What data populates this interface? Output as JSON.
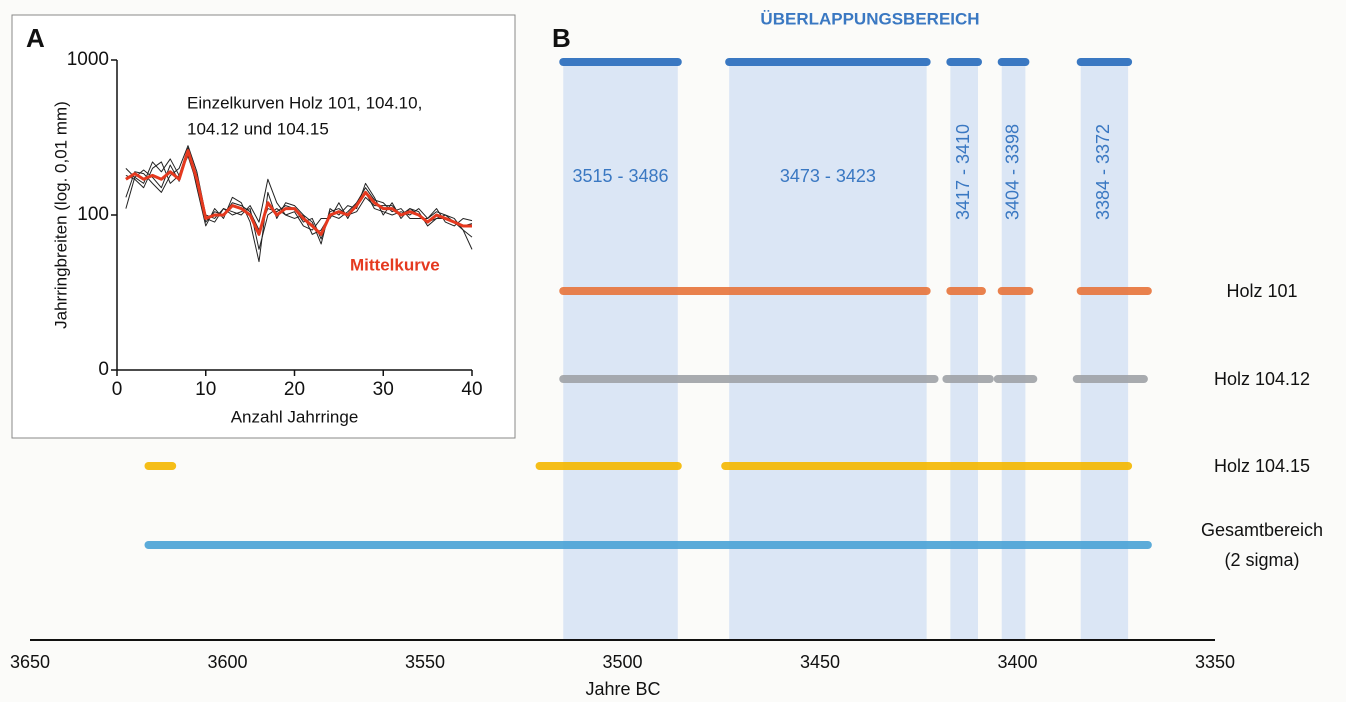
{
  "chart_data": [
    {
      "type": "line",
      "panel": "A",
      "log_y": true,
      "annotation": [
        "Einzelkurven Holz 101, 104.10,",
        "104.12 und 104.15"
      ],
      "xlabel": "Anzahl Jahrringe",
      "ylabel": "Jahrringbreiten (log. 0,01 mm)",
      "xlim": [
        0,
        40
      ],
      "xticks": [
        0,
        10,
        20,
        30,
        40
      ],
      "ylim": [
        10,
        1000
      ],
      "yticks": [
        {
          "value": 10,
          "label": "0"
        },
        100,
        1000
      ],
      "x": [
        1,
        2,
        3,
        4,
        5,
        6,
        7,
        8,
        9,
        10,
        11,
        12,
        13,
        14,
        15,
        16,
        17,
        18,
        19,
        20,
        21,
        22,
        23,
        24,
        25,
        26,
        27,
        28,
        29,
        30,
        31,
        32,
        33,
        34,
        35,
        36,
        37,
        38,
        39,
        40
      ],
      "series": [
        {
          "color": "#222222",
          "values": [
            200,
            175,
            160,
            220,
            190,
            230,
            180,
            270,
            150,
            85,
            110,
            95,
            130,
            120,
            90,
            50,
            140,
            95,
            120,
            115,
            100,
            90,
            65,
            110,
            100,
            115,
            110,
            160,
            130,
            100,
            120,
            95,
            110,
            105,
            85,
            95,
            100,
            95,
            80,
            72
          ]
        },
        {
          "color": "#222222",
          "values": [
            130,
            190,
            185,
            160,
            140,
            180,
            200,
            280,
            190,
            100,
            95,
            110,
            105,
            100,
            115,
            90,
            170,
            120,
            100,
            105,
            85,
            80,
            95,
            95,
            120,
            95,
            120,
            150,
            125,
            120,
            105,
            110,
            95,
            95,
            95,
            110,
            90,
            85,
            95,
            92
          ]
        },
        {
          "color": "#222222",
          "values": [
            180,
            170,
            150,
            200,
            220,
            160,
            180,
            240,
            160,
            90,
            105,
            100,
            120,
            115,
            105,
            80,
            110,
            105,
            115,
            110,
            90,
            95,
            70,
            105,
            110,
            100,
            105,
            130,
            115,
            115,
            115,
            100,
            110,
            100,
            90,
            95,
            95,
            90,
            85,
            88
          ]
        },
        {
          "color": "#222222",
          "values": [
            110,
            175,
            195,
            175,
            150,
            210,
            165,
            255,
            180,
            95,
            90,
            110,
            100,
            105,
            110,
            60,
            100,
            110,
            100,
            95,
            100,
            75,
            80,
            100,
            95,
            105,
            120,
            140,
            110,
            105,
            100,
            105,
            100,
            110,
            95,
            105,
            100,
            90,
            80,
            60
          ]
        },
        {
          "name": "Mittelkurve",
          "color": "#e5391f",
          "values": [
            170,
            185,
            170,
            180,
            170,
            190,
            170,
            260,
            170,
            95,
            100,
            100,
            115,
            110,
            100,
            75,
            120,
            100,
            110,
            110,
            95,
            85,
            75,
            100,
            105,
            100,
            115,
            140,
            120,
            110,
            110,
            100,
            105,
            100,
            90,
            100,
            95,
            90,
            85,
            85
          ]
        }
      ]
    },
    {
      "type": "range",
      "panel": "B",
      "title": "ÜBERLAPPUNGSBEREICH",
      "xlabel": "Jahre BC",
      "xlim": [
        3650,
        3350
      ],
      "xticks": [
        3650,
        3600,
        3550,
        3500,
        3450,
        3400,
        3350
      ],
      "overlap_color": "#3a78c2",
      "overlaps": [
        {
          "range": [
            3515,
            3486
          ],
          "label": "3515 - 3486"
        },
        {
          "range": [
            3473,
            3423
          ],
          "label": "3473 - 3423"
        },
        {
          "range": [
            3417,
            3410
          ],
          "label": "3417 - 3410"
        },
        {
          "range": [
            3404,
            3398
          ],
          "label": "3404 - 3398"
        },
        {
          "range": [
            3384,
            3372
          ],
          "label": "3384 - 3372"
        }
      ],
      "series": [
        {
          "name": [
            "Holz 101"
          ],
          "color": "#e8743b",
          "values": [
            [
              3515,
              3423
            ],
            [
              3417,
              3409
            ],
            [
              3404,
              3397
            ],
            [
              3384,
              3367
            ]
          ]
        },
        {
          "name": [
            "Holz  104.12"
          ],
          "color": "#a0a3a8",
          "values": [
            [
              3515,
              3421
            ],
            [
              3418,
              3407
            ],
            [
              3405,
              3396
            ],
            [
              3385,
              3368
            ]
          ]
        },
        {
          "name": [
            "Holz 104.15"
          ],
          "color": "#f5b800",
          "values": [
            [
              3620,
              3614
            ],
            [
              3521,
              3486
            ],
            [
              3474,
              3372
            ]
          ]
        },
        {
          "name": [
            "Gesamtbereich",
            "(2 sigma)"
          ],
          "color": "#4aa3d6",
          "values": [
            [
              3620,
              3367
            ]
          ]
        }
      ]
    }
  ]
}
